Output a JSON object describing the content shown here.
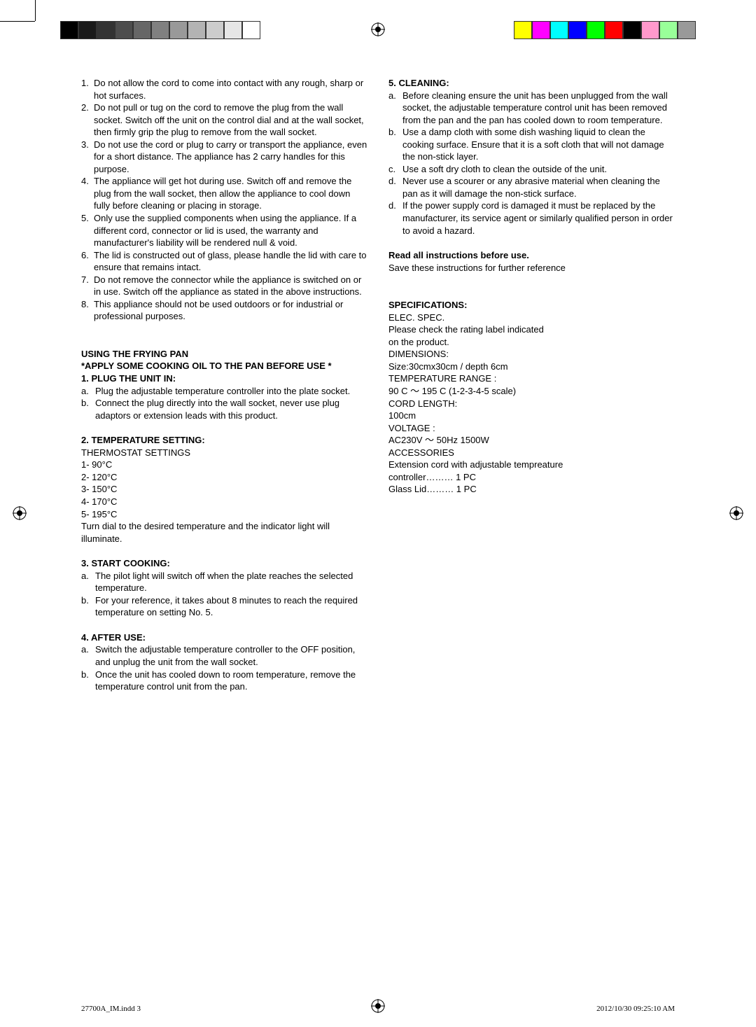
{
  "colorbar_left": [
    "#000000",
    "#1a1a1a",
    "#333333",
    "#4d4d4d",
    "#666666",
    "#808080",
    "#999999",
    "#b3b3b3",
    "#cccccc",
    "#e6e6e6",
    "#ffffff"
  ],
  "colorbar_right": [
    "#ffff00",
    "#ff00ff",
    "#00ffff",
    "#0000ff",
    "#00ff00",
    "#ff0000",
    "#000000",
    "#ff99cc",
    "#99ff99",
    "#999999"
  ],
  "left_col": {
    "warnings": [
      {
        "n": "1.",
        "t": "Do not allow the cord to come into contact with any rough, sharp or hot surfaces."
      },
      {
        "n": "2.",
        "t": "Do not pull or tug on the cord to remove the plug from the wall socket. Switch off the unit on the control dial and at the wall socket, then firmly grip the plug to remove from the wall socket."
      },
      {
        "n": "3.",
        "t": "Do not use the cord or plug to carry or transport the appliance, even for a short distance. The appliance has 2 carry handles for this purpose."
      },
      {
        "n": "4.",
        "t": "The appliance will get hot during use. Switch off and remove the plug from the wall socket, then allow the appliance to cool down fully before cleaning or placing in storage."
      },
      {
        "n": "5.",
        "t": "Only use the supplied components when using the appliance. If a different cord, connector or lid is used, the warranty and manufacturer's liability will be rendered null & void."
      },
      {
        "n": "6.",
        "t": "The lid is constructed out of glass, please handle the lid with care to ensure that remains intact."
      },
      {
        "n": "7.",
        "t": "Do not remove the connector while the appliance is switched on or in use. Switch off the appliance as stated in the above instructions."
      },
      {
        "n": "8.",
        "t": "This appliance should not be used outdoors or for industrial or professional purposes."
      }
    ],
    "using_title": "USING THE FRYING PAN",
    "apply_oil": "*APPLY SOME COOKING OIL TO THE PAN BEFORE USE *",
    "plug_title": "1. PLUG THE UNIT IN:",
    "plug_items": [
      {
        "n": "a.",
        "t": "Plug the adjustable temperature controller into the plate socket."
      },
      {
        "n": "b.",
        "t": "Connect the plug directly into the wall socket, never use plug adaptors or extension leads with this product."
      }
    ],
    "temp_title": "2. TEMPERATURE SETTING:",
    "temp_sub": "THERMOSTAT SETTINGS",
    "temp_rows": [
      "1-  90°C",
      "2- 120°C",
      "3- 150°C",
      "4- 170°C",
      "5- 195°C"
    ],
    "temp_note": "Turn dial to the desired temperature and the indicator light will illuminate.",
    "start_title": "3. START COOKING:",
    "start_items": [
      {
        "n": "a.",
        "t": "The pilot light will switch off when the plate reaches the selected temperature."
      },
      {
        "n": "b.",
        "t": "For your reference, it takes about 8 minutes to reach the required temperature on setting No. 5."
      }
    ],
    "after_title": "4. AFTER USE:",
    "after_items": [
      {
        "n": "a.",
        "t": "Switch the adjustable temperature controller to the OFF position, and unplug the unit from the wall socket."
      },
      {
        "n": "b.",
        "t": "Once the unit has cooled down to room temperature, remove the temperature control unit from the pan."
      }
    ]
  },
  "right_col": {
    "clean_title": "5. CLEANING:",
    "clean_items": [
      {
        "n": "a.",
        "t": "Before cleaning ensure the unit has been unplugged from the wall socket, the adjustable temperature control unit has been removed from the pan and the pan has cooled down to room temperature."
      },
      {
        "n": "b.",
        "t": "Use a damp cloth with some dish washing liquid to clean the cooking surface. Ensure that it is a soft cloth that will not damage the non-stick layer."
      },
      {
        "n": "c.",
        "t": "Use a soft dry cloth to clean the outside of the unit."
      },
      {
        "n": "d.",
        "t": "Never use a scourer or any abrasive material when cleaning the pan as it will damage the non-stick surface."
      },
      {
        "n": "d.",
        "t": "If the power supply cord is damaged it must be replaced by the manufacturer, its service agent or similarly qualified person in order to avoid a hazard."
      }
    ],
    "read_title": "Read all instructions before use.",
    "read_sub": "Save these instructions for further reference",
    "spec_title": "SPECIFICATIONS:",
    "spec_lines": [
      "ELEC. SPEC.",
      "Please check the rating label indicated",
      "on the product.",
      "DIMENSIONS:",
      "Size:30cmx30cm / depth 6cm",
      "TEMPERATURE RANGE :",
      "90 C ～ 195 C (1-2-3-4-5 scale)",
      "CORD LENGTH:",
      "100cm",
      "VOLTAGE :",
      "AC230V ～ 50Hz 1500W",
      "ACCESSORIES",
      "Extension cord with adjustable tempreature",
      "controller……… 1 PC",
      "Glass Lid……… 1 PC"
    ]
  },
  "footer": {
    "file": "27700A_IM.indd   3",
    "stamp": "2012/10/30   09:25:10 AM"
  }
}
